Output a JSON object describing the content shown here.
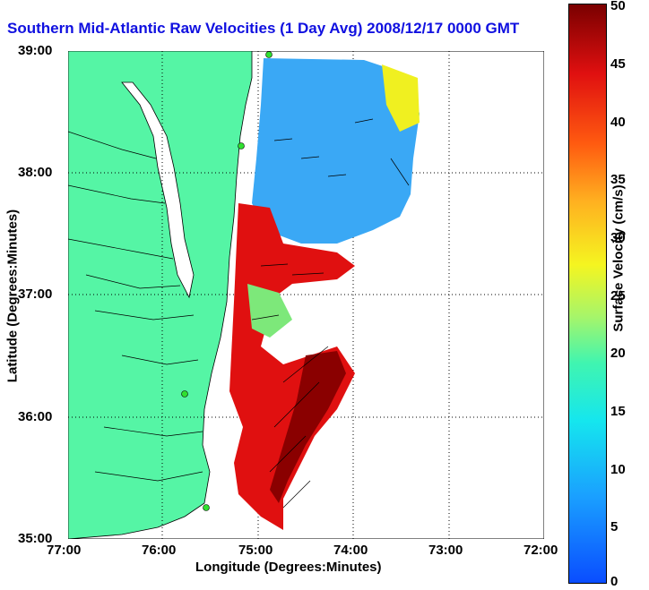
{
  "title": "Southern Mid-Atlantic Raw Velocities (1 Day Avg) 2008/12/17 0000 GMT",
  "xlabel": "Longitude (Degrees:Minutes)",
  "ylabel": "Latitude (Degrees:Minutes)",
  "colorbar_label": "Surface Velocity (cm/s)",
  "x_ticks": [
    "77:00",
    "76:00",
    "75:00",
    "74:00",
    "73:00",
    "72:00"
  ],
  "y_ticks": [
    "39:00",
    "38:00",
    "37:00",
    "36:00",
    "35:00"
  ],
  "colorbar_ticks": [
    "50",
    "45",
    "40",
    "35",
    "30",
    "25",
    "20",
    "15",
    "10",
    "5",
    "0"
  ],
  "colors": {
    "land": "#55f5a5",
    "title": "#1010e0",
    "grid": "#000000"
  }
}
